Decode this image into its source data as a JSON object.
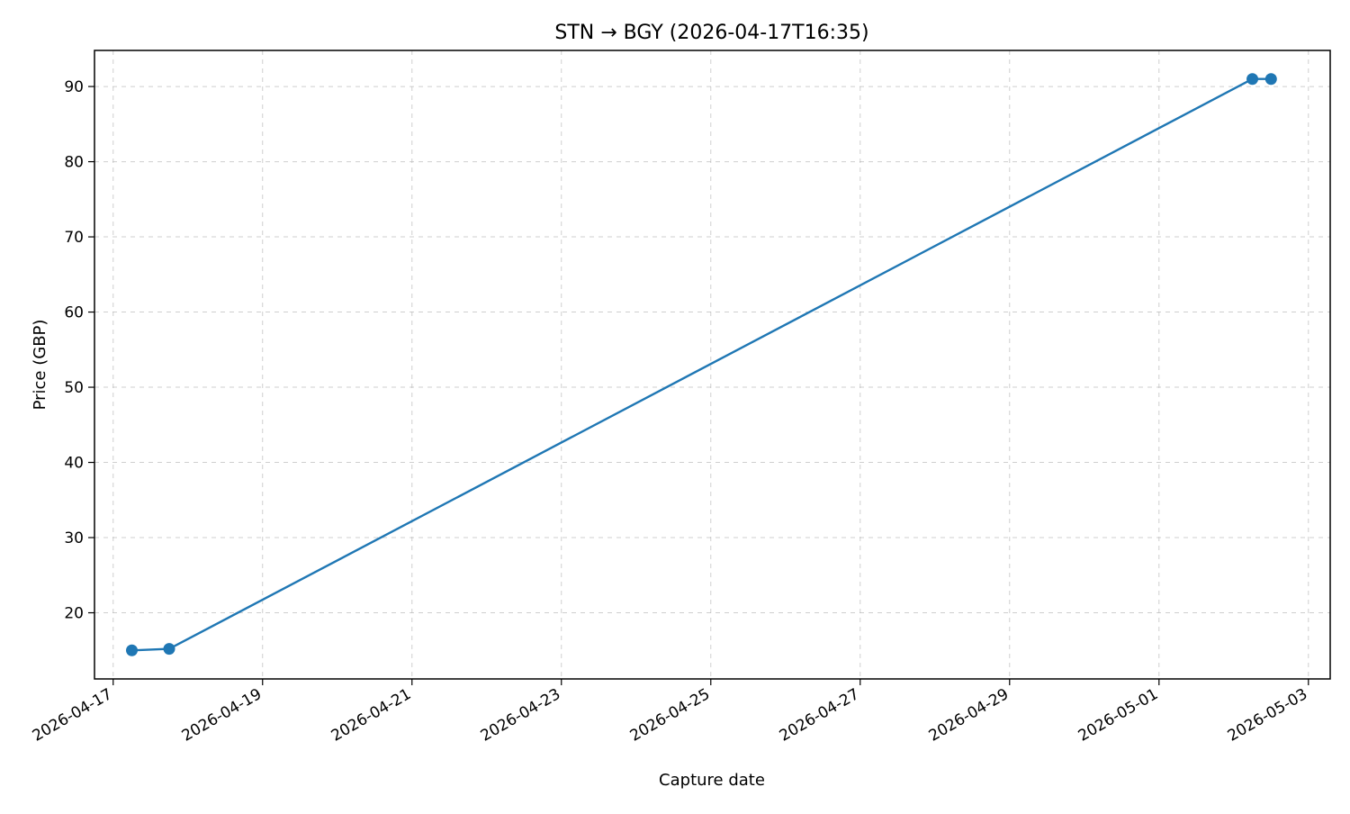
{
  "chart_data": {
    "type": "line",
    "title": "STN → BGY (2026-04-17T16:35)",
    "xlabel": "Capture date",
    "ylabel": "Price (GBP)",
    "x_tick_labels": [
      "2026-04-17",
      "2026-04-19",
      "2026-04-21",
      "2026-04-23",
      "2026-04-25",
      "2026-04-27",
      "2026-04-29",
      "2026-05-01",
      "2026-05-03"
    ],
    "y_ticks": [
      20,
      30,
      40,
      50,
      60,
      70,
      80,
      90
    ],
    "xlim": [
      "2026-04-16T18:00",
      "2026-05-03T07:00"
    ],
    "ylim": [
      11.2,
      94.8
    ],
    "grid": true,
    "line_color": "#1f77b4",
    "series": [
      {
        "x": [
          "2026-04-17T06:00",
          "2026-04-17T18:00",
          "2026-05-02T06:00",
          "2026-05-02T12:00"
        ],
        "y": [
          15.0,
          15.2,
          91.0,
          91.0
        ]
      }
    ]
  }
}
